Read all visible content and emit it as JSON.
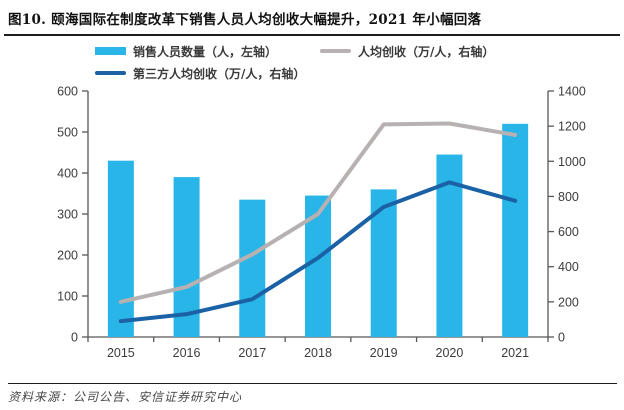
{
  "title": "图10. 颐海国际在制度改革下销售人员人均创收大幅提升，2021 年小幅回落",
  "source": "资料来源：公司公告、安信证券研究中心",
  "legend": {
    "items": [
      {
        "label": "销售人员数量（人，左轴）",
        "swatch": "bar",
        "color": "#29B5E8"
      },
      {
        "label": "人均创收（万/人，右轴）",
        "swatch": "line",
        "color": "#B7B1B1"
      },
      {
        "label": "第三方人均创收（万/人，右轴）",
        "swatch": "line",
        "color": "#1B61A6"
      }
    ]
  },
  "chart_data": {
    "type": "bar",
    "categories": [
      "2015",
      "2016",
      "2017",
      "2018",
      "2019",
      "2020",
      "2021"
    ],
    "series": [
      {
        "name": "销售人员数量（人，左轴）",
        "type": "bar",
        "axis": "left",
        "color": "#29B5E8",
        "values": [
          430,
          390,
          335,
          345,
          360,
          445,
          520
        ]
      },
      {
        "name": "人均创收（万/人，右轴）",
        "type": "line",
        "axis": "right",
        "color": "#B7B1B1",
        "values": [
          200,
          285,
          470,
          700,
          1210,
          1215,
          1150
        ]
      },
      {
        "name": "第三方人均创收（万/人，右轴）",
        "type": "line",
        "axis": "right",
        "color": "#1B61A6",
        "values": [
          90,
          130,
          215,
          450,
          740,
          880,
          775
        ]
      }
    ],
    "left_axis": {
      "label": "",
      "min": 0,
      "max": 600,
      "ticks": [
        0,
        100,
        200,
        300,
        400,
        500,
        600
      ]
    },
    "right_axis": {
      "label": "",
      "min": 0,
      "max": 1400,
      "ticks": [
        0,
        200,
        400,
        600,
        800,
        1000,
        1200,
        1400
      ]
    },
    "grid": false,
    "legend_position": "top-left"
  }
}
